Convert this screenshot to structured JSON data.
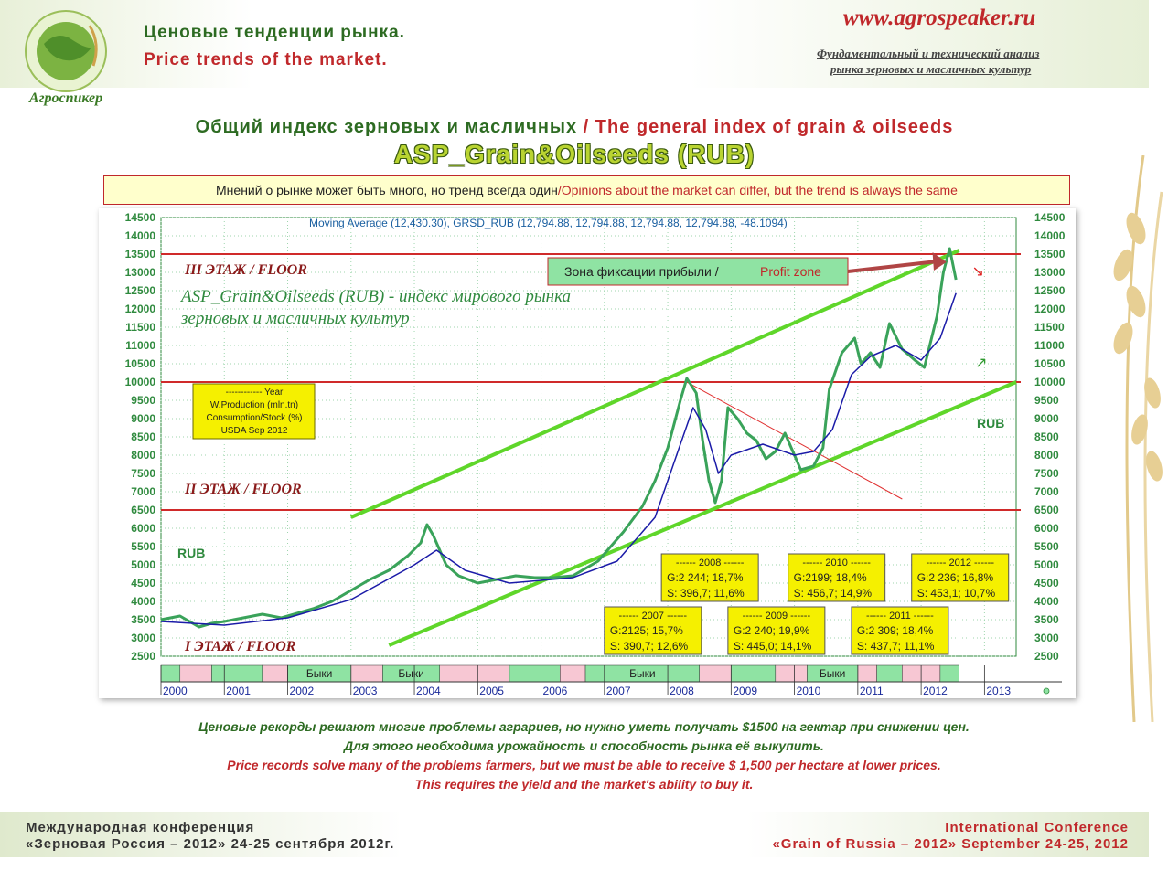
{
  "header": {
    "title_ru": "Ценовые тенденции рынка.",
    "title_en": "Price trends of the market.",
    "logo_text": "Агроспикер",
    "site": "www.agrospeaker.ru",
    "subtitle_1": "Фундаментальный и технический анализ",
    "subtitle_2": "рынка зерновых и масличных культур"
  },
  "title": {
    "ru": "Общий индекс зерновых и масличных",
    "sep": " / ",
    "en": "The general index of grain & oilseeds",
    "main": "ASP_Grain&Oilseeds (RUB)"
  },
  "banner": {
    "ru": "Мнений о рынке может быть много, но тренд всегда один",
    "sep": " / ",
    "en": "Opinions about the market can differ, but the trend is always the same"
  },
  "chart_data": {
    "type": "line",
    "header": "Moving Average (12,430.30), GRSD_RUB (12,794.88, 12,794.88, 12,794.88, 12,794.88, -48.1094)",
    "ylim": [
      2500,
      14500
    ],
    "yticks": [
      2500,
      3000,
      3500,
      4000,
      4500,
      5000,
      5500,
      6000,
      6500,
      7000,
      7500,
      8000,
      8500,
      9000,
      9500,
      10000,
      10500,
      11000,
      11500,
      12000,
      12500,
      13000,
      13500,
      14000,
      14500
    ],
    "xlim": [
      2000.0,
      2013.5
    ],
    "years": [
      "2000",
      "2001",
      "2002",
      "2003",
      "2004",
      "2005",
      "2006",
      "2007",
      "2008",
      "2009",
      "2010",
      "2011",
      "2012",
      "2013"
    ],
    "grid": true,
    "series": [
      {
        "name": "GRSD_RUB",
        "color": "#3aa35a",
        "points": [
          [
            2000.0,
            3500
          ],
          [
            2000.3,
            3600
          ],
          [
            2000.6,
            3300
          ],
          [
            2000.8,
            3400
          ],
          [
            2001.0,
            3450
          ],
          [
            2001.3,
            3550
          ],
          [
            2001.6,
            3650
          ],
          [
            2001.9,
            3550
          ],
          [
            2002.1,
            3650
          ],
          [
            2002.4,
            3800
          ],
          [
            2002.7,
            4000
          ],
          [
            2003.0,
            4300
          ],
          [
            2003.3,
            4600
          ],
          [
            2003.6,
            4850
          ],
          [
            2003.9,
            5250
          ],
          [
            2004.1,
            5600
          ],
          [
            2004.2,
            6100
          ],
          [
            2004.3,
            5800
          ],
          [
            2004.5,
            5000
          ],
          [
            2004.7,
            4700
          ],
          [
            2005.0,
            4500
          ],
          [
            2005.3,
            4600
          ],
          [
            2005.6,
            4700
          ],
          [
            2005.9,
            4650
          ],
          [
            2006.2,
            4650
          ],
          [
            2006.5,
            4700
          ],
          [
            2006.9,
            5100
          ],
          [
            2007.1,
            5500
          ],
          [
            2007.3,
            5900
          ],
          [
            2007.6,
            6600
          ],
          [
            2007.8,
            7300
          ],
          [
            2008.0,
            8200
          ],
          [
            2008.2,
            9500
          ],
          [
            2008.3,
            10100
          ],
          [
            2008.45,
            9700
          ],
          [
            2008.55,
            8400
          ],
          [
            2008.65,
            7300
          ],
          [
            2008.75,
            6700
          ],
          [
            2008.85,
            7300
          ],
          [
            2008.95,
            9300
          ],
          [
            2009.1,
            9000
          ],
          [
            2009.25,
            8600
          ],
          [
            2009.4,
            8400
          ],
          [
            2009.55,
            7900
          ],
          [
            2009.7,
            8100
          ],
          [
            2009.85,
            8600
          ],
          [
            2010.0,
            8000
          ],
          [
            2010.1,
            7600
          ],
          [
            2010.3,
            7700
          ],
          [
            2010.45,
            8200
          ],
          [
            2010.55,
            9800
          ],
          [
            2010.75,
            10800
          ],
          [
            2010.95,
            11200
          ],
          [
            2011.05,
            10500
          ],
          [
            2011.2,
            10800
          ],
          [
            2011.35,
            10400
          ],
          [
            2011.5,
            11600
          ],
          [
            2011.7,
            10900
          ],
          [
            2011.9,
            10600
          ],
          [
            2012.05,
            10400
          ],
          [
            2012.25,
            11800
          ],
          [
            2012.35,
            13000
          ],
          [
            2012.45,
            13650
          ],
          [
            2012.55,
            12800
          ]
        ]
      },
      {
        "name": "Moving Average",
        "color": "#1b1ba8",
        "points": [
          [
            2000.0,
            3450
          ],
          [
            2001.0,
            3350
          ],
          [
            2002.0,
            3550
          ],
          [
            2003.0,
            4050
          ],
          [
            2004.0,
            5000
          ],
          [
            2004.35,
            5400
          ],
          [
            2004.8,
            4850
          ],
          [
            2005.5,
            4500
          ],
          [
            2006.5,
            4650
          ],
          [
            2007.2,
            5100
          ],
          [
            2007.8,
            6300
          ],
          [
            2008.2,
            8300
          ],
          [
            2008.4,
            9300
          ],
          [
            2008.6,
            8700
          ],
          [
            2008.8,
            7500
          ],
          [
            2009.0,
            8000
          ],
          [
            2009.5,
            8300
          ],
          [
            2010.0,
            8000
          ],
          [
            2010.3,
            8100
          ],
          [
            2010.6,
            8700
          ],
          [
            2010.9,
            10200
          ],
          [
            2011.2,
            10700
          ],
          [
            2011.6,
            11000
          ],
          [
            2012.0,
            10600
          ],
          [
            2012.3,
            11200
          ],
          [
            2012.55,
            12430
          ]
        ]
      }
    ],
    "trend_lines": [
      {
        "color": "#5fd62a",
        "from": [
          2003.0,
          6300
        ],
        "to": [
          2012.6,
          13600
        ]
      },
      {
        "color": "#5fd62a",
        "from": [
          2003.6,
          2800
        ],
        "to": [
          2013.5,
          10000
        ]
      },
      {
        "color": "#e03030",
        "from": [
          2008.3,
          10000
        ],
        "to": [
          2011.7,
          6800
        ]
      }
    ],
    "levels": [
      6500,
      10000,
      13500
    ],
    "floors": [
      "III ЭТАЖ / FLOOR",
      "II ЭТАЖ / FLOOR",
      "I ЭТАЖ / FLOOR"
    ],
    "annotation_title": "ASP_Grain&Oilseeds (RUB) - индекс мирового рынка",
    "annotation_sub": "зерновых и масличных культур",
    "rub_labels": [
      "RUB",
      "RUB"
    ],
    "legend_box": [
      "------------ Year",
      "W.Production (mln.tn)",
      "Consumption/Stock (%)",
      "USDA Sep 2012"
    ],
    "profit_zone": {
      "ru": "Зона фиксации прибыли",
      "en": "Profit zone"
    },
    "year_boxes": [
      {
        "title": "------ 2007 ------",
        "g": "G:2125; 15,7%",
        "s": "S: 390,7; 12,6%"
      },
      {
        "title": "------ 2008 ------",
        "g": "G:2 244; 18,7%",
        "s": "S: 396,7; 11,6%"
      },
      {
        "title": "------ 2009 ------",
        "g": "G:2 240; 19,9%",
        "s": "S: 445,0; 14,1%"
      },
      {
        "title": "------ 2010 ------",
        "g": "G:2199; 18,4%",
        "s": "S: 456,7; 14,9%"
      },
      {
        "title": "------ 2011 ------",
        "g": "G:2 309; 18,4%",
        "s": "S: 437,7; 11,1%"
      },
      {
        "title": "------ 2012 ------",
        "g": "G:2 236; 16,8%",
        "s": "S: 453,1; 10,7%"
      }
    ],
    "bulls_label": "Быки",
    "regimes": [
      {
        "from": 2000.0,
        "to": 2000.3,
        "state": "bull"
      },
      {
        "from": 2000.3,
        "to": 2000.8,
        "state": "bear"
      },
      {
        "from": 2000.8,
        "to": 2001.6,
        "state": "bull"
      },
      {
        "from": 2001.6,
        "to": 2002.0,
        "state": "bear"
      },
      {
        "from": 2002.0,
        "to": 2003.0,
        "state": "bull",
        "label": true
      },
      {
        "from": 2003.0,
        "to": 2003.5,
        "state": "bear"
      },
      {
        "from": 2003.5,
        "to": 2004.4,
        "state": "bull",
        "label": true
      },
      {
        "from": 2004.4,
        "to": 2005.5,
        "state": "bear"
      },
      {
        "from": 2005.5,
        "to": 2006.3,
        "state": "bull"
      },
      {
        "from": 2006.3,
        "to": 2006.7,
        "state": "bear"
      },
      {
        "from": 2006.7,
        "to": 2008.5,
        "state": "bull",
        "label": true
      },
      {
        "from": 2008.5,
        "to": 2009.0,
        "state": "bear"
      },
      {
        "from": 2009.0,
        "to": 2009.7,
        "state": "bull"
      },
      {
        "from": 2009.7,
        "to": 2010.2,
        "state": "bear"
      },
      {
        "from": 2010.2,
        "to": 2011.0,
        "state": "bull",
        "label": true
      },
      {
        "from": 2011.0,
        "to": 2011.3,
        "state": "bear"
      },
      {
        "from": 2011.3,
        "to": 2011.7,
        "state": "bull"
      },
      {
        "from": 2011.7,
        "to": 2012.3,
        "state": "bear"
      },
      {
        "from": 2012.3,
        "to": 2012.6,
        "state": "bull"
      }
    ]
  },
  "captions": {
    "ru1": "Ценовые рекорды решают многие проблемы аграриев, но нужно уметь получать $1500 на гектар при снижении цен.",
    "ru2": "Для этого необходима урожайность и способность рынка её выкупить.",
    "en1": "Price records solve many of the problems farmers, but we must be able to receive $ 1,500 per hectare at lower prices.",
    "en2": "This requires the yield and the market's ability to buy it."
  },
  "footer": {
    "left1": "Международная конференция",
    "left2": "«Зерновая Россия – 2012»  24-25 сентября 2012г.",
    "right1": "International Conference",
    "right2": "«Grain of Russia – 2012»  September 24-25, 2012"
  },
  "colors": {
    "green": "#2d6b22",
    "red": "#c0282b",
    "accent": "#b9d431"
  }
}
